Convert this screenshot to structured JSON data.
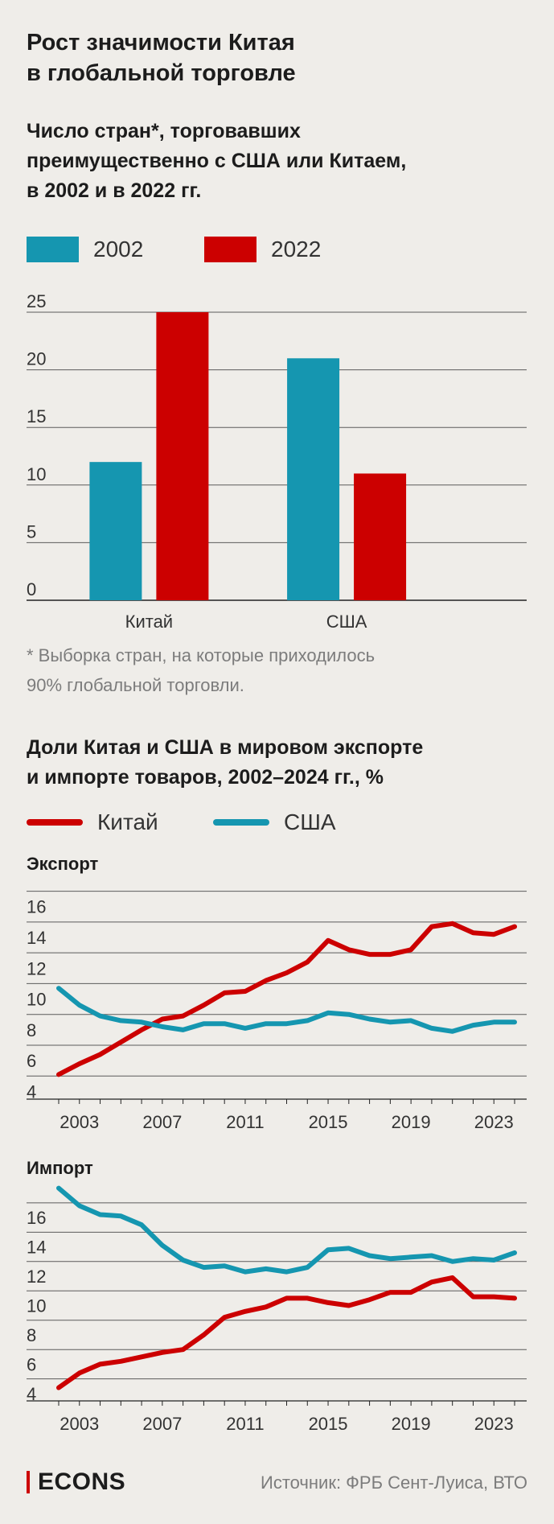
{
  "title": "Рост значимости Китая\nв глобальной торговле",
  "colors": {
    "blue": "#1596b0",
    "red": "#cc0000",
    "grid": "#5b5b5b"
  },
  "bar_section": {
    "subtitle": "Число стран*, торговавших\nпреимущественно с США или Китаем,\nв 2002 и в 2022 гг.",
    "legend": [
      {
        "label": "2002",
        "color": "#1596b0"
      },
      {
        "label": "2022",
        "color": "#cc0000"
      }
    ],
    "note": "* Выборка стран, на которые приходилось\n90% глобальной торговли."
  },
  "line_section": {
    "subtitle": "Доли Китая и США в мировом экспорте\nи импорте товаров, 2002–2024 гг., %",
    "legend": [
      {
        "label": "Китай",
        "color": "#cc0000"
      },
      {
        "label": "США",
        "color": "#1596b0"
      }
    ],
    "export_label": "Экспорт",
    "import_label": "Импорт"
  },
  "footer": {
    "logo": "ECONS",
    "source": "Источник: ФРБ Сент-Луиса, ВТО"
  },
  "chart_data": [
    {
      "type": "bar",
      "categories": [
        "Китай",
        "США"
      ],
      "series": [
        {
          "name": "2002",
          "values": [
            12,
            21
          ]
        },
        {
          "name": "2022",
          "values": [
            25,
            11
          ]
        }
      ],
      "ylim": [
        0,
        25
      ],
      "yticks": [
        0,
        5,
        10,
        15,
        20,
        25
      ]
    },
    {
      "type": "line",
      "panel": "Экспорт",
      "x": [
        2002,
        2003,
        2004,
        2005,
        2006,
        2007,
        2008,
        2009,
        2010,
        2011,
        2012,
        2013,
        2014,
        2015,
        2016,
        2017,
        2018,
        2019,
        2020,
        2021,
        2022,
        2023,
        2024
      ],
      "series": [
        {
          "name": "Китай",
          "values": [
            5.1,
            5.8,
            6.4,
            7.2,
            8.0,
            8.7,
            8.9,
            9.6,
            10.4,
            10.5,
            11.2,
            11.7,
            12.4,
            13.8,
            13.2,
            12.9,
            12.9,
            13.2,
            14.7,
            14.9,
            14.3,
            14.2,
            14.7
          ]
        },
        {
          "name": "США",
          "values": [
            10.7,
            9.6,
            8.9,
            8.6,
            8.5,
            8.2,
            8.0,
            8.4,
            8.4,
            8.1,
            8.4,
            8.4,
            8.6,
            9.1,
            9.0,
            8.7,
            8.5,
            8.6,
            8.1,
            7.9,
            8.3,
            8.5,
            8.5
          ]
        }
      ],
      "ylim": [
        3.5,
        17.5
      ],
      "yticks": [
        4,
        6,
        8,
        10,
        12,
        14,
        16
      ],
      "xticks": [
        2003,
        2007,
        2011,
        2015,
        2019,
        2023
      ]
    },
    {
      "type": "line",
      "panel": "Импорт",
      "x": [
        2002,
        2003,
        2004,
        2005,
        2006,
        2007,
        2008,
        2009,
        2010,
        2011,
        2012,
        2013,
        2014,
        2015,
        2016,
        2017,
        2018,
        2019,
        2020,
        2021,
        2022,
        2023,
        2024
      ],
      "series": [
        {
          "name": "Китай",
          "values": [
            4.4,
            5.4,
            6.0,
            6.2,
            6.5,
            6.8,
            7.0,
            8.0,
            9.2,
            9.6,
            9.9,
            10.5,
            10.5,
            10.2,
            10.0,
            10.4,
            10.9,
            10.9,
            11.6,
            11.9,
            10.6,
            10.6,
            10.5
          ]
        },
        {
          "name": "США",
          "values": [
            18.0,
            16.8,
            16.2,
            16.1,
            15.5,
            14.1,
            13.1,
            12.6,
            12.7,
            12.3,
            12.5,
            12.3,
            12.6,
            13.8,
            13.9,
            13.4,
            13.2,
            13.3,
            13.4,
            13.0,
            13.2,
            13.1,
            13.6
          ]
        }
      ],
      "ylim": [
        3.5,
        18.2
      ],
      "yticks": [
        4,
        6,
        8,
        10,
        12,
        14,
        16
      ],
      "xticks": [
        2003,
        2007,
        2011,
        2015,
        2019,
        2023
      ]
    }
  ]
}
